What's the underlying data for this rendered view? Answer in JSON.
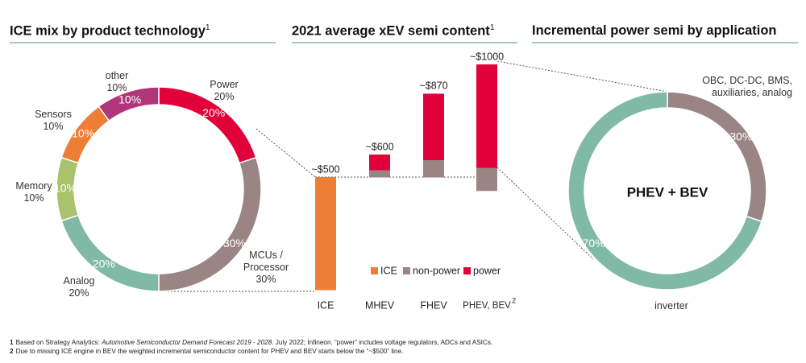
{
  "chart_data": [
    {
      "type": "donut",
      "title": "ICE mix by product technology",
      "title_note": "1",
      "categories": [
        "Power",
        "MCUs / Processor",
        "Analog",
        "Memory",
        "Sensors",
        "other"
      ],
      "values": [
        20,
        30,
        20,
        10,
        10,
        10
      ],
      "value_labels": [
        "20%",
        "30%",
        "20%",
        "10%",
        "10%",
        "10%"
      ],
      "colors": [
        "#e2003a",
        "#9b8584",
        "#80b9a5",
        "#a8c36b",
        "#ee7d36",
        "#b0357a"
      ]
    },
    {
      "type": "waterfall",
      "title": "2021 average xEV semi content",
      "title_note": "1",
      "categories": [
        "ICE",
        "MHEV",
        "FHEV",
        "PHEV, BEV"
      ],
      "category_notes": [
        null,
        null,
        null,
        "2"
      ],
      "bases": [
        0,
        500,
        500,
        440
      ],
      "series": [
        {
          "name": "ICE",
          "color": "#ee7d36",
          "values": [
            500,
            null,
            null,
            null
          ]
        },
        {
          "name": "non-power",
          "color": "#9b8584",
          "values": [
            null,
            30,
            75,
            100
          ]
        },
        {
          "name": "power",
          "color": "#e2003a",
          "values": [
            null,
            70,
            295,
            460
          ]
        }
      ],
      "totals": [
        500,
        600,
        870,
        1000
      ],
      "total_labels": [
        "~$500",
        "~$600",
        "~$870",
        "~$1000"
      ],
      "ylim": [
        0,
        1000
      ]
    },
    {
      "type": "donut",
      "title": "Incremental power semi by application",
      "center_label": "PHEV + BEV",
      "categories": [
        "OBC, DC-DC, BMS, auxiliaries, analog",
        "inverter"
      ],
      "values": [
        30,
        70
      ],
      "value_labels": [
        "30%",
        "70%"
      ],
      "colors": [
        "#9b8584",
        "#80b9a5"
      ]
    }
  ],
  "footnotes": [
    {
      "marker": "1",
      "parts": [
        "Based on Strategy Analytics: ",
        "Automotive Semiconductor Demand Forecast 2019 - 2028",
        ". July 2022; Infineon. “power” includes voltage regulators, ADCs and ASICs."
      ]
    },
    {
      "marker": "2",
      "parts": [
        "Due to missing ICE engine in BEV the weighted incremental semiconductor content for PHEV and BEV starts below the “~$500” line."
      ]
    }
  ]
}
